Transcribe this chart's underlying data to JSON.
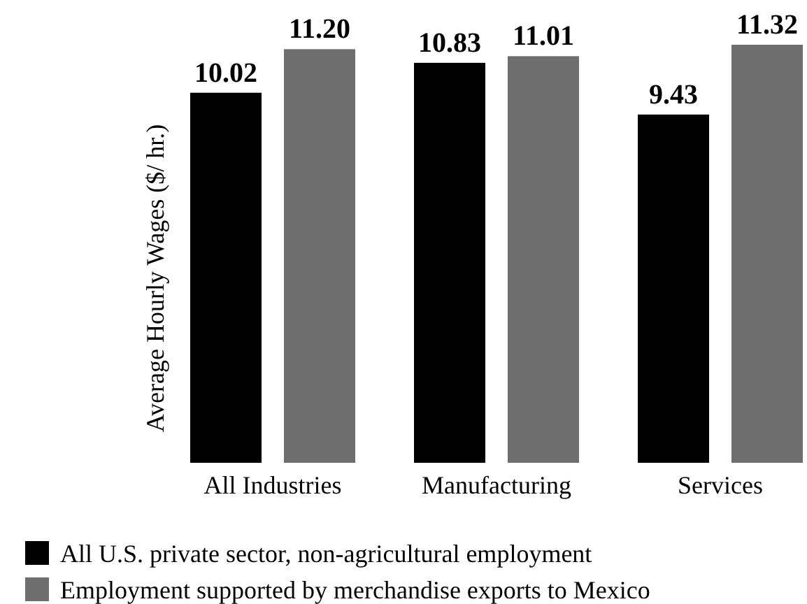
{
  "chart_data": {
    "type": "bar",
    "ylabel": "Average Hourly Wages ($/ hr.)",
    "categories": [
      "All Industries",
      "Manufacturing",
      "Services"
    ],
    "series": [
      {
        "name": "All U.S. private sector, non-agricultural employment",
        "color": "#000000",
        "values": [
          10.02,
          10.83,
          9.43
        ],
        "value_labels": [
          "10.02",
          "10.83",
          "9.43"
        ]
      },
      {
        "name": "Employment supported by merchandise exports to Mexico",
        "color": "#6e6e6e",
        "values": [
          11.2,
          11.01,
          11.32
        ],
        "value_labels": [
          "11.20",
          "11.01",
          "11.32"
        ]
      }
    ],
    "legend": "bottom"
  }
}
